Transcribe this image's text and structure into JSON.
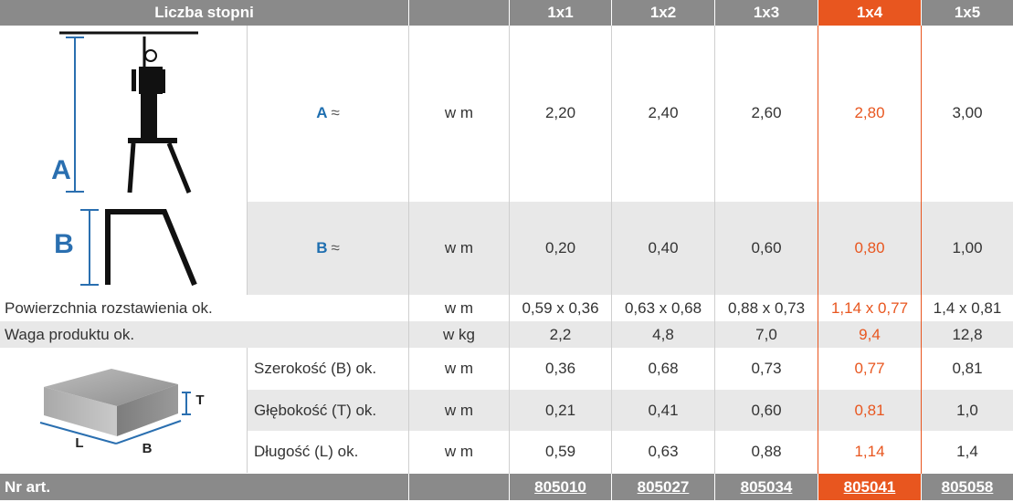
{
  "header": {
    "label": "Liczba stopni",
    "columns": [
      "1x1",
      "1x2",
      "1x3",
      "1x4",
      "1x5"
    ],
    "highlight_index": 3
  },
  "figure_labels": {
    "a": "A",
    "b": "B",
    "t": "T",
    "l": "L",
    "b2": "B"
  },
  "rows": {
    "a": {
      "letter": "A",
      "approx": "≈",
      "unit": "w m",
      "values": [
        "2,20",
        "2,40",
        "2,60",
        "2,80",
        "3,00"
      ]
    },
    "b": {
      "letter": "B",
      "approx": "≈",
      "unit": "w m",
      "values": [
        "0,20",
        "0,40",
        "0,60",
        "0,80",
        "1,00"
      ]
    },
    "area": {
      "label": "Powierzchnia rozstawienia ok.",
      "unit": "w m",
      "values": [
        "0,59 x 0,36",
        "0,63 x 0,68",
        "0,88 x 0,73",
        "1,14 x 0,77",
        "1,4 x 0,81"
      ]
    },
    "weight": {
      "label": "Waga produktu ok.",
      "unit": "w kg",
      "values": [
        "2,2",
        "4,8",
        "7,0",
        "9,4",
        "12,8"
      ]
    },
    "width": {
      "label": "Szerokość (B) ok.",
      "unit": "w m",
      "values": [
        "0,36",
        "0,68",
        "0,73",
        "0,77",
        "0,81"
      ]
    },
    "depth": {
      "label": "Głębokość (T) ok.",
      "unit": "w m",
      "values": [
        "0,21",
        "0,41",
        "0,60",
        "0,81",
        "1,0"
      ]
    },
    "length": {
      "label": "Długość (L) ok.",
      "unit": "w m",
      "values": [
        "0,59",
        "0,63",
        "0,88",
        "1,14",
        "1,4"
      ]
    }
  },
  "footer": {
    "label": "Nr art.",
    "articles": [
      "805010",
      "805027",
      "805034",
      "805041",
      "805058"
    ]
  },
  "colors": {
    "header_gray": "#8a8a8a",
    "highlight_orange": "#e8561f",
    "row_gray": "#e8e8e8",
    "letter_blue": "#1f6fb0"
  }
}
